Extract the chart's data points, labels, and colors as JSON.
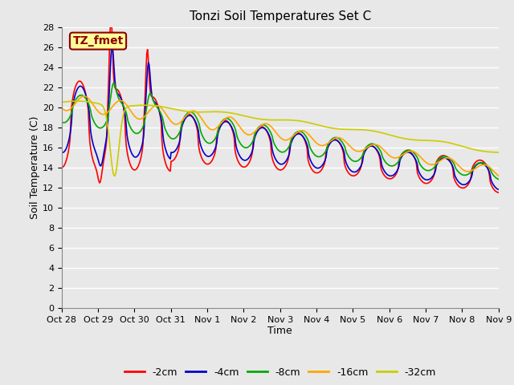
{
  "title": "Tonzi Soil Temperatures Set C",
  "xlabel": "Time",
  "ylabel": "Soil Temperature (C)",
  "ylim": [
    0,
    28
  ],
  "annotation_text": "TZ_fmet",
  "annotation_bg": "#FFFF99",
  "annotation_border": "#8B0000",
  "plot_bg": "#E8E8E8",
  "fig_bg": "#E8E8E8",
  "line_colors": [
    "#FF0000",
    "#0000CC",
    "#00AA00",
    "#FFA500",
    "#CCCC00"
  ],
  "line_labels": [
    "-2cm",
    "-4cm",
    "-8cm",
    "-16cm",
    "-32cm"
  ],
  "tick_labels": [
    "Oct 28",
    "Oct 29",
    "Oct 30",
    "Oct 31",
    "Nov 1",
    "Nov 2",
    "Nov 3",
    "Nov 4",
    "Nov 5",
    "Nov 6",
    "Nov 7",
    "Nov 8",
    "Nov 9"
  ]
}
